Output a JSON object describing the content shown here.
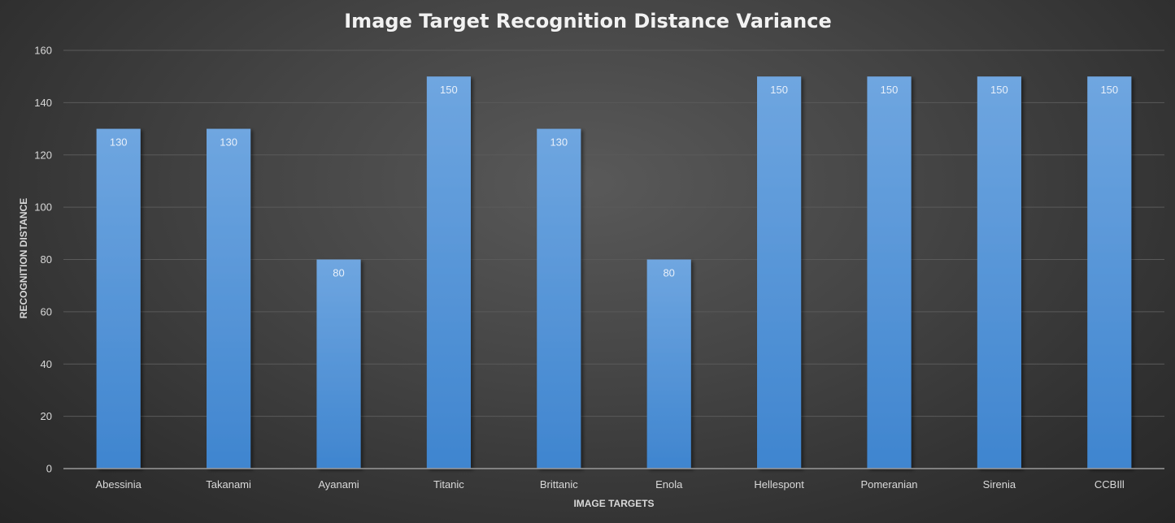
{
  "chart_data": {
    "type": "bar",
    "title": "Image Target Recognition Distance Variance",
    "xlabel": "IMAGE TARGETS",
    "ylabel": "RECOGNITION DISTANCE",
    "categories": [
      "Abessinia",
      "Takanami",
      "Ayanami",
      "Titanic",
      "Brittanic",
      "Enola",
      "Hellespont",
      "Pomeranian",
      "Sirenia",
      "CCBIll"
    ],
    "values": [
      130,
      130,
      80,
      150,
      130,
      80,
      150,
      150,
      150,
      150
    ],
    "ylim": [
      0,
      160
    ],
    "yticks": [
      0,
      20,
      40,
      60,
      80,
      100,
      120,
      140,
      160
    ],
    "grid": true,
    "data_labels": true,
    "colors": {
      "bar_top": "#6fa6e0",
      "bar_bottom": "#3f85cf",
      "grid": "#5a5a5a",
      "axis": "#9a9a9a"
    }
  }
}
